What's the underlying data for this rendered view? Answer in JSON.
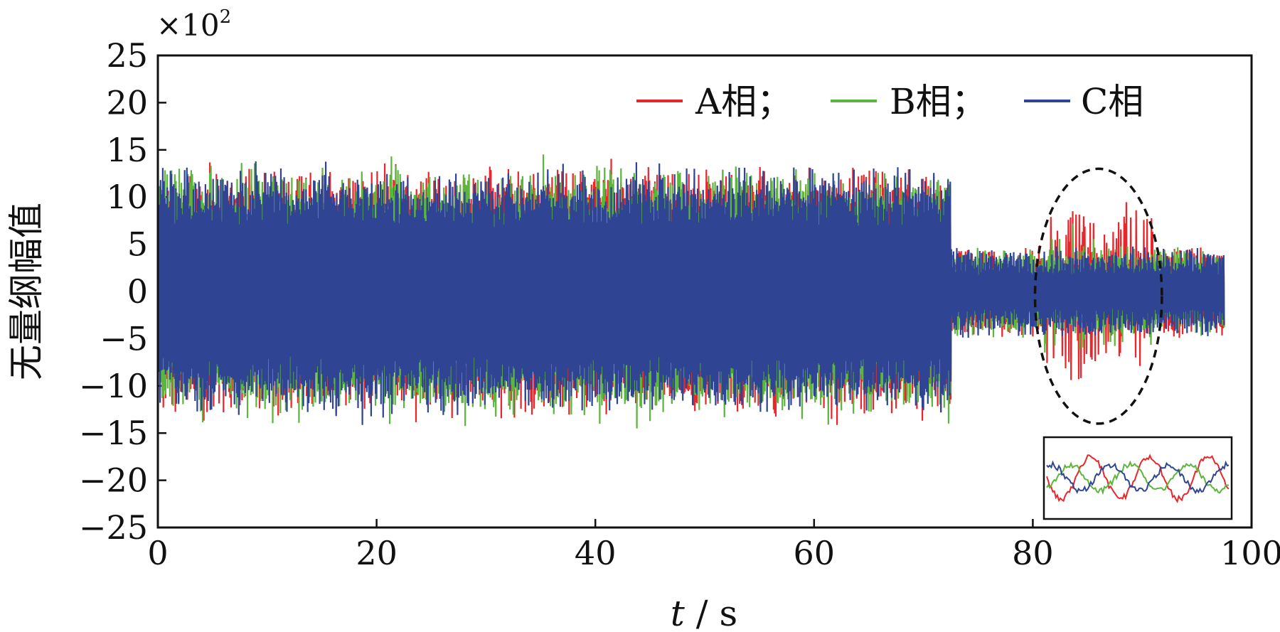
{
  "chart_data": {
    "type": "line",
    "title": "",
    "xlabel_var": "t",
    "xlabel_rest": " / s",
    "ylabel": "无量纲幅值",
    "y_scale_base": "×10",
    "y_scale_exp": "2",
    "xlim": [
      0,
      100
    ],
    "ylim": [
      -25,
      25
    ],
    "x_ticks": [
      0,
      20,
      40,
      60,
      80,
      100
    ],
    "y_ticks": [
      25,
      20,
      15,
      10,
      5,
      0,
      -5,
      -10,
      -15,
      -20,
      -25
    ],
    "x_tick_labels": [
      "0",
      "20",
      "40",
      "60",
      "80",
      "100"
    ],
    "y_tick_labels": [
      "25",
      "20",
      "15",
      "10",
      "5",
      "0",
      "−5",
      "−10",
      "−15",
      "−20",
      "−25"
    ],
    "grid": false,
    "legend_position": "top-right",
    "series": [
      {
        "name": "A相；",
        "color": "#e8262b"
      },
      {
        "name": "B相；",
        "color": "#5cb53c"
      },
      {
        "name": "C相",
        "color": "#2f4593"
      }
    ],
    "segments": [
      {
        "t_start": 0,
        "t_end": 72.5,
        "amplitude_range": [
          -15.5,
          15.5
        ]
      },
      {
        "t_start": 72.5,
        "t_end": 97.5,
        "amplitude_range": [
          -5.5,
          5.5
        ]
      }
    ],
    "highlight_ellipse": {
      "t_center": 86,
      "y_center": -0.5,
      "t_halfwidth": 5.8,
      "y_halfwidth": 13.5
    },
    "inset": {
      "description_series": [
        "A相",
        "B相",
        "C相"
      ]
    }
  }
}
